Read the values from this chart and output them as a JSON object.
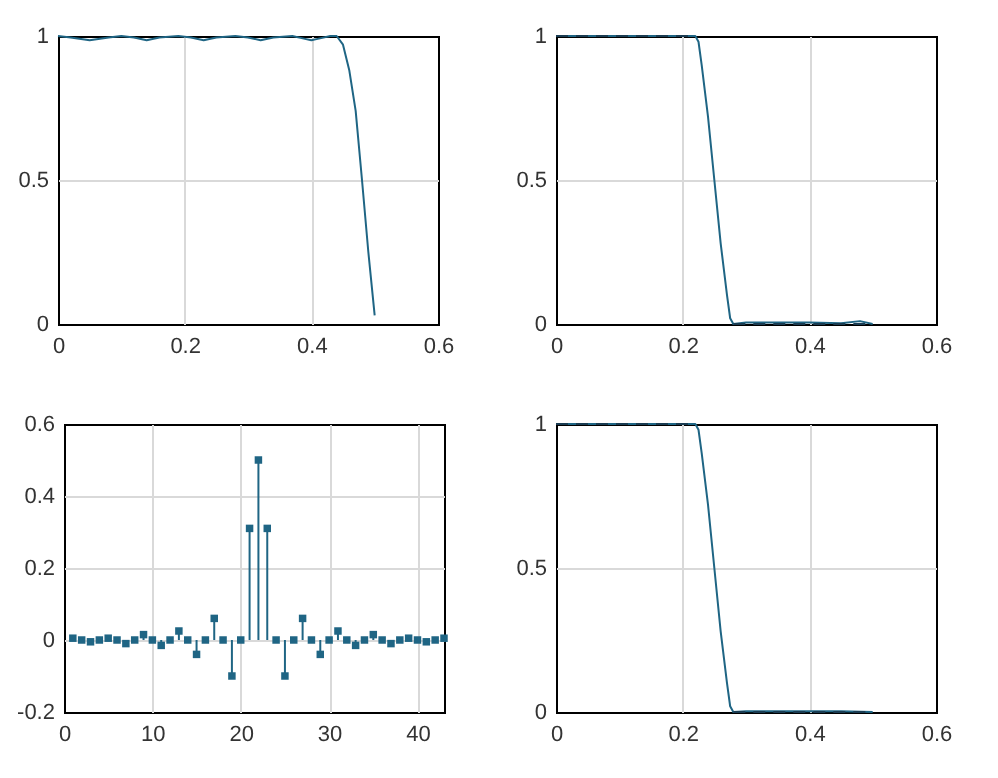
{
  "chart_data": [
    {
      "type": "line",
      "xlim": [
        0,
        0.6
      ],
      "xticks": [
        0,
        0.2,
        0.4,
        0.6
      ],
      "ylim": [
        0,
        1
      ],
      "yticks": [
        0,
        0.5,
        1
      ],
      "grid": true,
      "series": [
        {
          "color": "#1f6584",
          "x": [
            0,
            0.02,
            0.05,
            0.08,
            0.1,
            0.12,
            0.14,
            0.16,
            0.19,
            0.21,
            0.23,
            0.25,
            0.28,
            0.3,
            0.32,
            0.34,
            0.37,
            0.39,
            0.4,
            0.41,
            0.43,
            0.44,
            0.45,
            0.46,
            0.47,
            0.48,
            0.49,
            0.5
          ],
          "values": [
            1,
            0.995,
            0.985,
            0.995,
            1,
            0.995,
            0.985,
            0.995,
            1,
            0.995,
            0.985,
            0.995,
            1,
            0.995,
            0.985,
            0.995,
            1,
            0.99,
            0.985,
            0.99,
            1,
            1,
            0.97,
            0.88,
            0.74,
            0.5,
            0.25,
            0.03
          ]
        }
      ]
    },
    {
      "type": "line",
      "xlim": [
        0,
        0.6
      ],
      "xticks": [
        0,
        0.2,
        0.4,
        0.6
      ],
      "ylim": [
        0,
        1
      ],
      "yticks": [
        0,
        0.5,
        1
      ],
      "grid": true,
      "series": [
        {
          "color": "#1f6584",
          "x": [
            0,
            0.1,
            0.2,
            0.22,
            0.225,
            0.23,
            0.24,
            0.25,
            0.26,
            0.27,
            0.275,
            0.28,
            0.3,
            0.35,
            0.4,
            0.45,
            0.48,
            0.5
          ],
          "values": [
            1,
            1,
            1,
            1,
            0.98,
            0.9,
            0.72,
            0.5,
            0.28,
            0.1,
            0.02,
            0,
            0.005,
            0.005,
            0.005,
            0.003,
            0.01,
            0
          ]
        },
        {
          "color": "#1a3c52",
          "line_style": "dashed",
          "x": [
            0,
            0.22
          ],
          "values": [
            1,
            1
          ]
        },
        {
          "color": "#1a3c52",
          "line_style": "dashed",
          "x": [
            0.28,
            0.5
          ],
          "values": [
            0,
            0
          ]
        }
      ]
    },
    {
      "type": "lollipop",
      "marker": "square",
      "color": "#1f6584",
      "xlim": [
        0,
        43
      ],
      "xticks": [
        0,
        10,
        20,
        30,
        40
      ],
      "ylim": [
        -0.2,
        0.6
      ],
      "yticks": [
        -0.2,
        0,
        0.2,
        0.4,
        0.6
      ],
      "grid": true,
      "x": [
        1,
        2,
        3,
        4,
        5,
        6,
        7,
        8,
        9,
        10,
        11,
        12,
        13,
        14,
        15,
        16,
        17,
        18,
        19,
        20,
        21,
        22,
        23,
        24,
        25,
        26,
        27,
        28,
        29,
        30,
        31,
        32,
        33,
        34,
        35,
        36,
        37,
        38,
        39,
        40,
        41,
        42,
        43
      ],
      "values": [
        0.005,
        0,
        -0.005,
        0,
        0.005,
        0,
        -0.01,
        0,
        0.015,
        0,
        -0.015,
        0,
        0.025,
        0,
        -0.04,
        0,
        0.06,
        0,
        -0.1,
        0,
        0.31,
        0.5,
        0.31,
        0,
        -0.1,
        0,
        0.06,
        0,
        -0.04,
        0,
        0.025,
        0,
        -0.015,
        0,
        0.015,
        0,
        -0.01,
        0,
        0.005,
        0,
        -0.005,
        0,
        0.005
      ]
    },
    {
      "type": "line",
      "xlim": [
        0,
        0.6
      ],
      "xticks": [
        0,
        0.2,
        0.4,
        0.6
      ],
      "ylim": [
        0,
        1
      ],
      "yticks": [
        0,
        0.5,
        1
      ],
      "grid": true,
      "series": [
        {
          "color": "#1f6584",
          "x": [
            0,
            0.1,
            0.2,
            0.22,
            0.225,
            0.23,
            0.24,
            0.25,
            0.26,
            0.27,
            0.275,
            0.28,
            0.3,
            0.35,
            0.4,
            0.45,
            0.5
          ],
          "values": [
            1,
            1,
            1,
            1,
            0.98,
            0.9,
            0.72,
            0.5,
            0.28,
            0.1,
            0.02,
            0,
            0.003,
            0.003,
            0.003,
            0.003,
            0
          ]
        },
        {
          "color": "#1a3c52",
          "line_style": "dashed",
          "x": [
            0,
            0.22
          ],
          "values": [
            1,
            1
          ]
        },
        {
          "color": "#1a3c52",
          "line_style": "dashed",
          "x": [
            0.28,
            0.5
          ],
          "values": [
            0,
            0
          ]
        }
      ]
    }
  ]
}
